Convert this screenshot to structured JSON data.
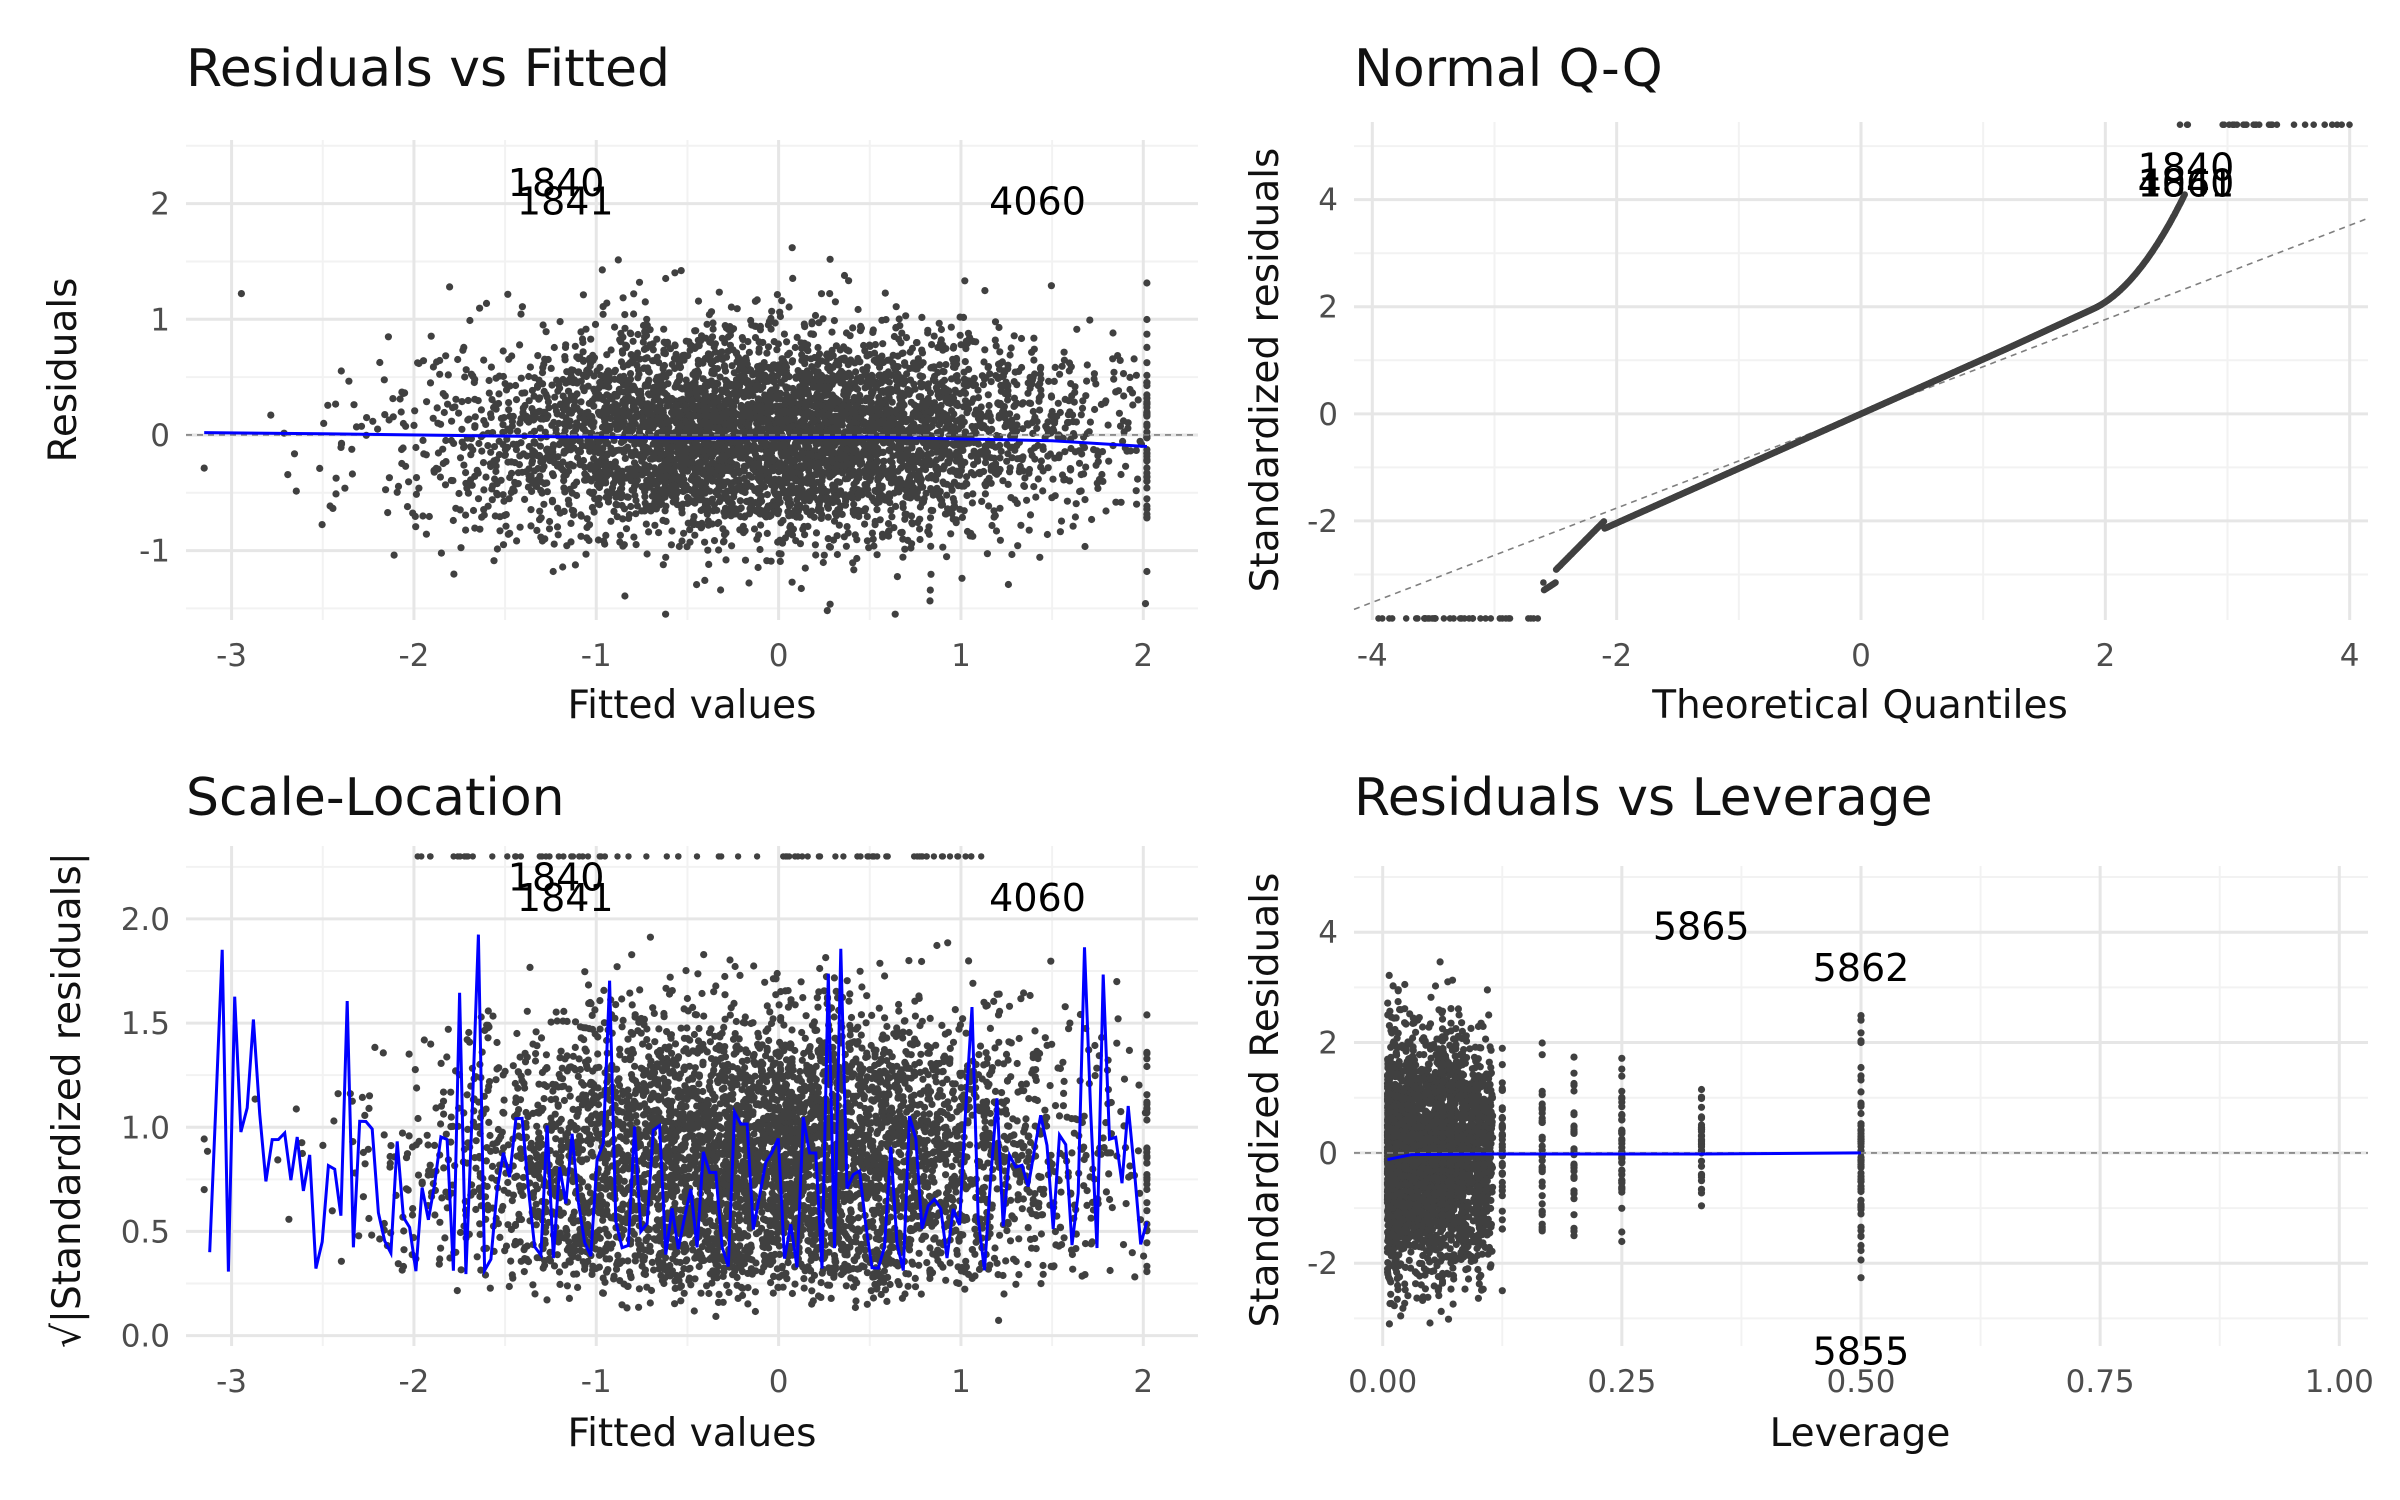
{
  "colors": {
    "background": "#ffffff",
    "grid_major": "#e6e6e6",
    "grid_minor": "#f2f2f2",
    "points": "#404040",
    "smooth": "#0000ff",
    "refline": "#7f7f7f"
  },
  "chart_data": [
    {
      "id": "residuals-vs-fitted",
      "type": "scatter",
      "title": "Residuals vs Fitted",
      "xlabel": "Fitted values",
      "ylabel": "Residuals",
      "xlim": [
        -3.25,
        2.3
      ],
      "ylim": [
        -1.6,
        2.55
      ],
      "x_ticks": [
        -3,
        -2,
        -1,
        0,
        1,
        2
      ],
      "x_tick_labels": [
        "-3",
        "-2",
        "-1",
        "0",
        "1",
        "2"
      ],
      "y_ticks": [
        -1,
        0,
        1,
        2
      ],
      "y_tick_labels": [
        "-1",
        "0",
        "1",
        "2"
      ],
      "reference_line": {
        "type": "hline",
        "y": 0,
        "style": "dashed"
      },
      "smooth_line": {
        "x": [
          -3.15,
          -2.5,
          -1.5,
          -0.5,
          0.5,
          1.5,
          2.02
        ],
        "y": [
          0.02,
          0.01,
          -0.01,
          -0.03,
          -0.02,
          -0.05,
          -0.1
        ]
      },
      "labeled_points": [
        {
          "label": "1840",
          "x": -1.22,
          "y": 2.18
        },
        {
          "label": "1841",
          "x": -1.17,
          "y": 2.02
        },
        {
          "label": "4060",
          "x": 1.42,
          "y": 2.02
        }
      ],
      "n_points_approx": 9000
    },
    {
      "id": "normal-qq",
      "type": "scatter",
      "title": "Normal Q-Q",
      "xlabel": "Theoretical Quantiles",
      "ylabel": "Standardized residuals",
      "xlim": [
        -4.15,
        4.15
      ],
      "ylim": [
        -3.85,
        5.45
      ],
      "x_ticks": [
        -4,
        -2,
        0,
        2,
        4
      ],
      "x_tick_labels": [
        "-4",
        "-2",
        "0",
        "2",
        "4"
      ],
      "y_ticks": [
        -2,
        0,
        2,
        4
      ],
      "y_tick_labels": [
        "-2",
        "0",
        "2",
        "4"
      ],
      "reference_line": {
        "type": "abline",
        "intercept": 0,
        "slope": 0.88,
        "style": "dashed"
      },
      "labeled_points": [
        {
          "label": "1840",
          "x": 2.66,
          "y": 4.6
        },
        {
          "label": "1841",
          "x": 2.66,
          "y": 4.3
        },
        {
          "label": "4060",
          "x": 2.66,
          "y": 4.3
        }
      ],
      "n_points_approx": 9000
    },
    {
      "id": "scale-location",
      "type": "scatter",
      "title": "Scale-Location",
      "xlabel": "Fitted values",
      "ylabel": "√|Standardized residuals|",
      "xlim": [
        -3.25,
        2.3
      ],
      "ylim": [
        -0.05,
        2.35
      ],
      "x_ticks": [
        -3,
        -2,
        -1,
        0,
        1,
        2
      ],
      "x_tick_labels": [
        "-3",
        "-2",
        "-1",
        "0",
        "1",
        "2"
      ],
      "y_ticks": [
        0,
        0.5,
        1,
        1.5,
        2
      ],
      "y_tick_labels": [
        "0.0",
        "0.5",
        "1.0",
        "1.5",
        "2.0"
      ],
      "labeled_points": [
        {
          "label": "1840",
          "x": -1.22,
          "y": 2.2
        },
        {
          "label": "1841",
          "x": -1.17,
          "y": 2.1
        },
        {
          "label": "4060",
          "x": 1.42,
          "y": 2.1
        }
      ],
      "n_points_approx": 9000
    },
    {
      "id": "residuals-vs-leverage",
      "type": "scatter",
      "title": "Residuals vs Leverage",
      "xlabel": "Leverage",
      "ylabel": "Standardized Residuals",
      "xlim": [
        -0.03,
        1.03
      ],
      "ylim": [
        -3.5,
        5.2
      ],
      "x_ticks": [
        0,
        0.25,
        0.5,
        0.75,
        1
      ],
      "x_tick_labels": [
        "0.00",
        "0.25",
        "0.50",
        "0.75",
        "1.00"
      ],
      "y_ticks": [
        -2,
        0,
        2,
        4
      ],
      "y_tick_labels": [
        "-2",
        "0",
        "2",
        "4"
      ],
      "reference_line": {
        "type": "hline",
        "y": 0,
        "style": "dashed"
      },
      "smooth_line": {
        "x": [
          0.005,
          0.03,
          0.1,
          0.2,
          0.333,
          0.5
        ],
        "y": [
          -0.12,
          -0.03,
          -0.02,
          -0.02,
          -0.02,
          0
        ]
      },
      "leverage_levels": [
        0.0625,
        0.0714,
        0.0833,
        0.1,
        0.125,
        0.1667,
        0.2,
        0.25,
        0.3333,
        0.5
      ],
      "labeled_points": [
        {
          "label": "5865",
          "x": 0.333,
          "y": 4.1
        },
        {
          "label": "5862",
          "x": 0.5,
          "y": 3.35
        },
        {
          "label": "5855",
          "x": 0.5,
          "y": -3.6
        }
      ],
      "n_points_approx": 9000
    }
  ]
}
